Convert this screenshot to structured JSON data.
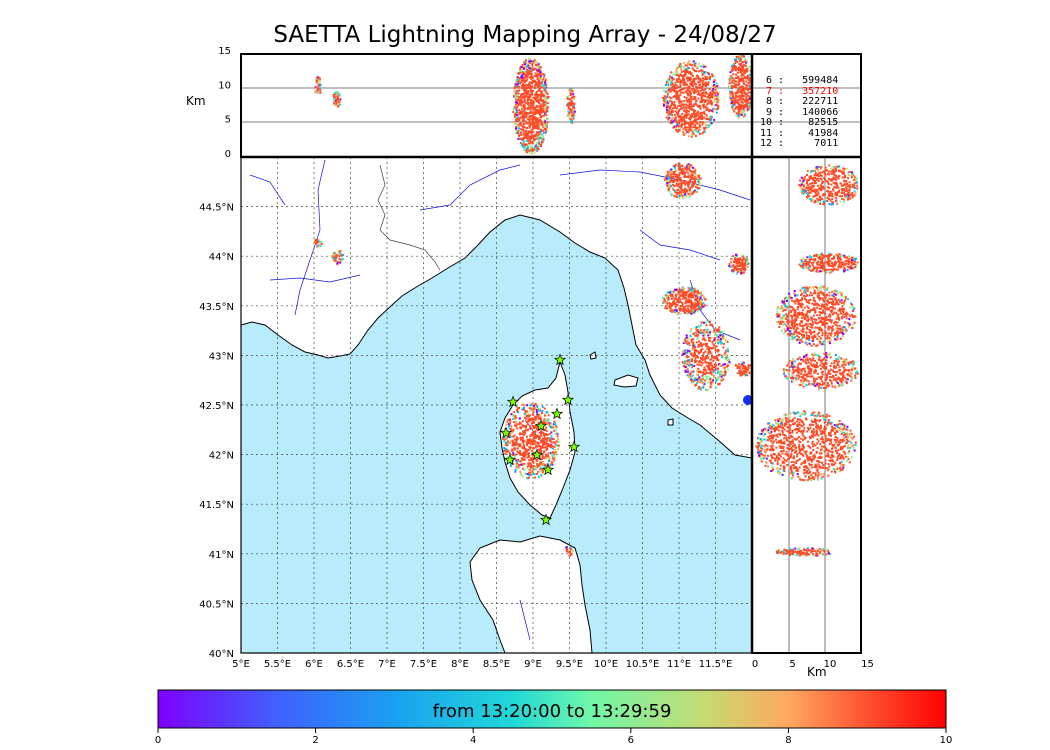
{
  "title": "SAETTA Lightning Mapping Array - 24/08/27",
  "map": {
    "lon_ticks": [
      "5°E",
      "5.5°E",
      "6°E",
      "6.5°E",
      "7°E",
      "7.5°E",
      "8°E",
      "8.5°E",
      "9°E",
      "9.5°E",
      "10°E",
      "10.5°E",
      "11°E",
      "11.5°E"
    ],
    "lat_ticks": [
      "40°N",
      "40.5°N",
      "41°N",
      "41.5°N",
      "42°N",
      "42.5°N",
      "43°N",
      "43.5°N",
      "44°N",
      "44.5°N"
    ],
    "sea_color": "#b8ecfc",
    "stations_marker_color": "#7fff00"
  },
  "altitude_panel": {
    "unit": "Km",
    "ticks": [
      "0",
      "5",
      "10",
      "15"
    ]
  },
  "lat_alt_panel": {
    "unit": "Km",
    "ticks": [
      "0",
      "5",
      "10",
      "15"
    ]
  },
  "station_counts": [
    {
      "text": " 6 :   599484",
      "color": "#000000"
    },
    {
      "text": " 7 :   357210",
      "color": "#ff0000"
    },
    {
      "text": " 8 :   222711",
      "color": "#000000"
    },
    {
      "text": " 9 :   140066",
      "color": "#000000"
    },
    {
      "text": "10 :    82515",
      "color": "#000000"
    },
    {
      "text": "11 :    41984",
      "color": "#000000"
    },
    {
      "text": "12 :     7011",
      "color": "#000000"
    }
  ],
  "colorbar": {
    "label": "from 13:20:00 to 13:29:59",
    "ticks": [
      "0",
      "2",
      "4",
      "6",
      "8",
      "10"
    ]
  }
}
